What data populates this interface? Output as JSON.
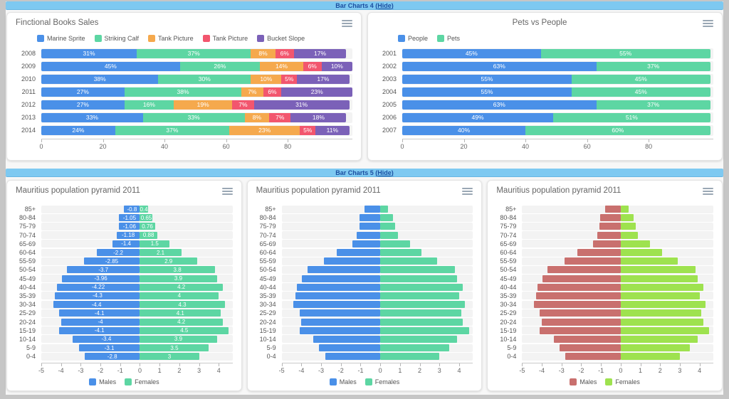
{
  "sections": [
    {
      "title": "Bar Charts 4",
      "hide_label": "(Hide)"
    },
    {
      "title": "Bar Charts 5",
      "hide_label": "(Hide)"
    }
  ],
  "colors": {
    "header_bar": "#7ec9f1",
    "header_text": "#1c4fa1",
    "blue": "#4a90e8",
    "green": "#5dd6a3",
    "orange": "#f5a94d",
    "red": "#f2566e",
    "purple": "#7b61b8",
    "pyramid_red": "#c9706e",
    "pyramid_green": "#9ee24f"
  },
  "chart_data": [
    {
      "type": "bar",
      "orientation": "horizontal",
      "stacked": true,
      "title": "Finctional Books Sales",
      "title_align": "left",
      "categories": [
        "2008",
        "2009",
        "2010",
        "2011",
        "2012",
        "2013",
        "2014"
      ],
      "series": [
        {
          "name": "Marine Sprite",
          "color": "#4a90e8",
          "values": [
            31,
            45,
            38,
            27,
            27,
            33,
            24
          ]
        },
        {
          "name": "Striking Calf",
          "color": "#5dd6a3",
          "values": [
            37,
            26,
            30,
            38,
            16,
            33,
            37
          ]
        },
        {
          "name": "Tank Picture",
          "color": "#f5a94d",
          "values": [
            8,
            14,
            10,
            7,
            19,
            8,
            23
          ]
        },
        {
          "name": "Tank Picture",
          "color": "#f2566e",
          "values": [
            6,
            6,
            5,
            6,
            7,
            7,
            5
          ]
        },
        {
          "name": "Bucket Slope",
          "color": "#7b61b8",
          "values": [
            17,
            10,
            17,
            23,
            31,
            18,
            11
          ]
        }
      ],
      "value_suffix": "%",
      "show_labels": true,
      "xticks": [
        0,
        20,
        40,
        60,
        80
      ],
      "xmin": 0,
      "xmax": 101,
      "legend_position": "top-left",
      "grid": false
    },
    {
      "type": "bar",
      "orientation": "horizontal",
      "stacked": true,
      "title": "Pets vs People",
      "title_align": "center",
      "categories": [
        "2001",
        "2002",
        "2003",
        "2004",
        "2005",
        "2006",
        "2007"
      ],
      "series": [
        {
          "name": "People",
          "color": "#4a90e8",
          "values": [
            45,
            63,
            55,
            55,
            63,
            49,
            40
          ]
        },
        {
          "name": "Pets",
          "color": "#5dd6a3",
          "values": [
            55,
            37,
            45,
            45,
            37,
            51,
            60
          ]
        }
      ],
      "value_suffix": "%",
      "show_labels": true,
      "xticks": [
        0,
        20,
        40,
        60,
        80
      ],
      "xmin": 0,
      "xmax": 101,
      "legend_position": "top-left",
      "grid": false
    },
    {
      "type": "bar",
      "subtype": "population-pyramid",
      "title": "Mauritius population pyramid 2011",
      "title_align": "left",
      "categories": [
        "85+",
        "80-84",
        "75-79",
        "70-74",
        "65-69",
        "60-64",
        "55-59",
        "50-54",
        "45-49",
        "40-44",
        "35-39",
        "30-34",
        "25-29",
        "20-24",
        "15-19",
        "10-14",
        "5-9",
        "0-4"
      ],
      "series": [
        {
          "name": "Males",
          "color": "#4a90e8",
          "values": [
            -0.8,
            -1.05,
            -1.06,
            -1.18,
            -1.4,
            -2.2,
            -2.85,
            -3.7,
            -3.96,
            -4.22,
            -4.3,
            -4.4,
            -4.1,
            -4,
            -4.1,
            -3.4,
            -3.1,
            -2.8
          ]
        },
        {
          "name": "Females",
          "color": "#5dd6a3",
          "values": [
            0.4,
            0.65,
            0.76,
            0.88,
            1.5,
            2.1,
            2.9,
            3.8,
            3.9,
            4.2,
            4,
            4.3,
            4.1,
            4.2,
            4.5,
            3.9,
            3.5,
            3
          ]
        }
      ],
      "value_suffix": "",
      "show_labels": true,
      "xticks": [
        -5,
        -4,
        -3,
        -2,
        -1,
        0,
        1,
        2,
        3,
        4
      ],
      "xmin": -5,
      "xmax": 4.7,
      "legend_position": "bottom-center",
      "grid": false
    },
    {
      "type": "bar",
      "subtype": "population-pyramid",
      "title": "Mauritius population pyramid 2011",
      "title_align": "left",
      "categories": [
        "85+",
        "80-84",
        "75-79",
        "70-74",
        "65-69",
        "60-64",
        "55-59",
        "50-54",
        "45-49",
        "40-44",
        "35-39",
        "30-34",
        "25-29",
        "20-24",
        "15-19",
        "10-14",
        "5-9",
        "0-4"
      ],
      "series": [
        {
          "name": "Males",
          "color": "#4a90e8",
          "values": [
            -0.8,
            -1.05,
            -1.06,
            -1.18,
            -1.4,
            -2.2,
            -2.85,
            -3.7,
            -3.96,
            -4.22,
            -4.3,
            -4.4,
            -4.1,
            -4,
            -4.1,
            -3.4,
            -3.1,
            -2.8
          ]
        },
        {
          "name": "Females",
          "color": "#5dd6a3",
          "values": [
            0.4,
            0.65,
            0.76,
            0.88,
            1.5,
            2.1,
            2.9,
            3.8,
            3.9,
            4.2,
            4,
            4.3,
            4.1,
            4.2,
            4.5,
            3.9,
            3.5,
            3
          ]
        }
      ],
      "value_suffix": "",
      "show_labels": false,
      "xticks": [
        -5,
        -4,
        -3,
        -2,
        -1,
        0,
        1,
        2,
        3,
        4
      ],
      "xmin": -5,
      "xmax": 4.7,
      "legend_position": "bottom-center",
      "grid": false
    },
    {
      "type": "bar",
      "subtype": "population-pyramid",
      "title": "Mauritius population pyramid 2011",
      "title_align": "left",
      "categories": [
        "85+",
        "80-84",
        "75-79",
        "70-74",
        "65-69",
        "60-64",
        "55-59",
        "50-54",
        "45-49",
        "40-44",
        "35-39",
        "30-34",
        "25-29",
        "20-24",
        "15-19",
        "10-14",
        "5-9",
        "0-4"
      ],
      "series": [
        {
          "name": "Males",
          "color": "#c9706e",
          "values": [
            -0.8,
            -1.05,
            -1.06,
            -1.18,
            -1.4,
            -2.2,
            -2.85,
            -3.7,
            -3.96,
            -4.22,
            -4.3,
            -4.4,
            -4.1,
            -4,
            -4.1,
            -3.4,
            -3.1,
            -2.8
          ]
        },
        {
          "name": "Females",
          "color": "#9ee24f",
          "values": [
            0.4,
            0.65,
            0.76,
            0.88,
            1.5,
            2.1,
            2.9,
            3.8,
            3.9,
            4.2,
            4,
            4.3,
            4.1,
            4.2,
            4.5,
            3.9,
            3.5,
            3
          ]
        }
      ],
      "value_suffix": "",
      "show_labels": false,
      "xticks": [
        -5,
        -4,
        -3,
        -2,
        -1,
        0,
        1,
        2,
        3,
        4
      ],
      "xmin": -5,
      "xmax": 4.7,
      "legend_position": "bottom-center",
      "grid": false
    }
  ]
}
